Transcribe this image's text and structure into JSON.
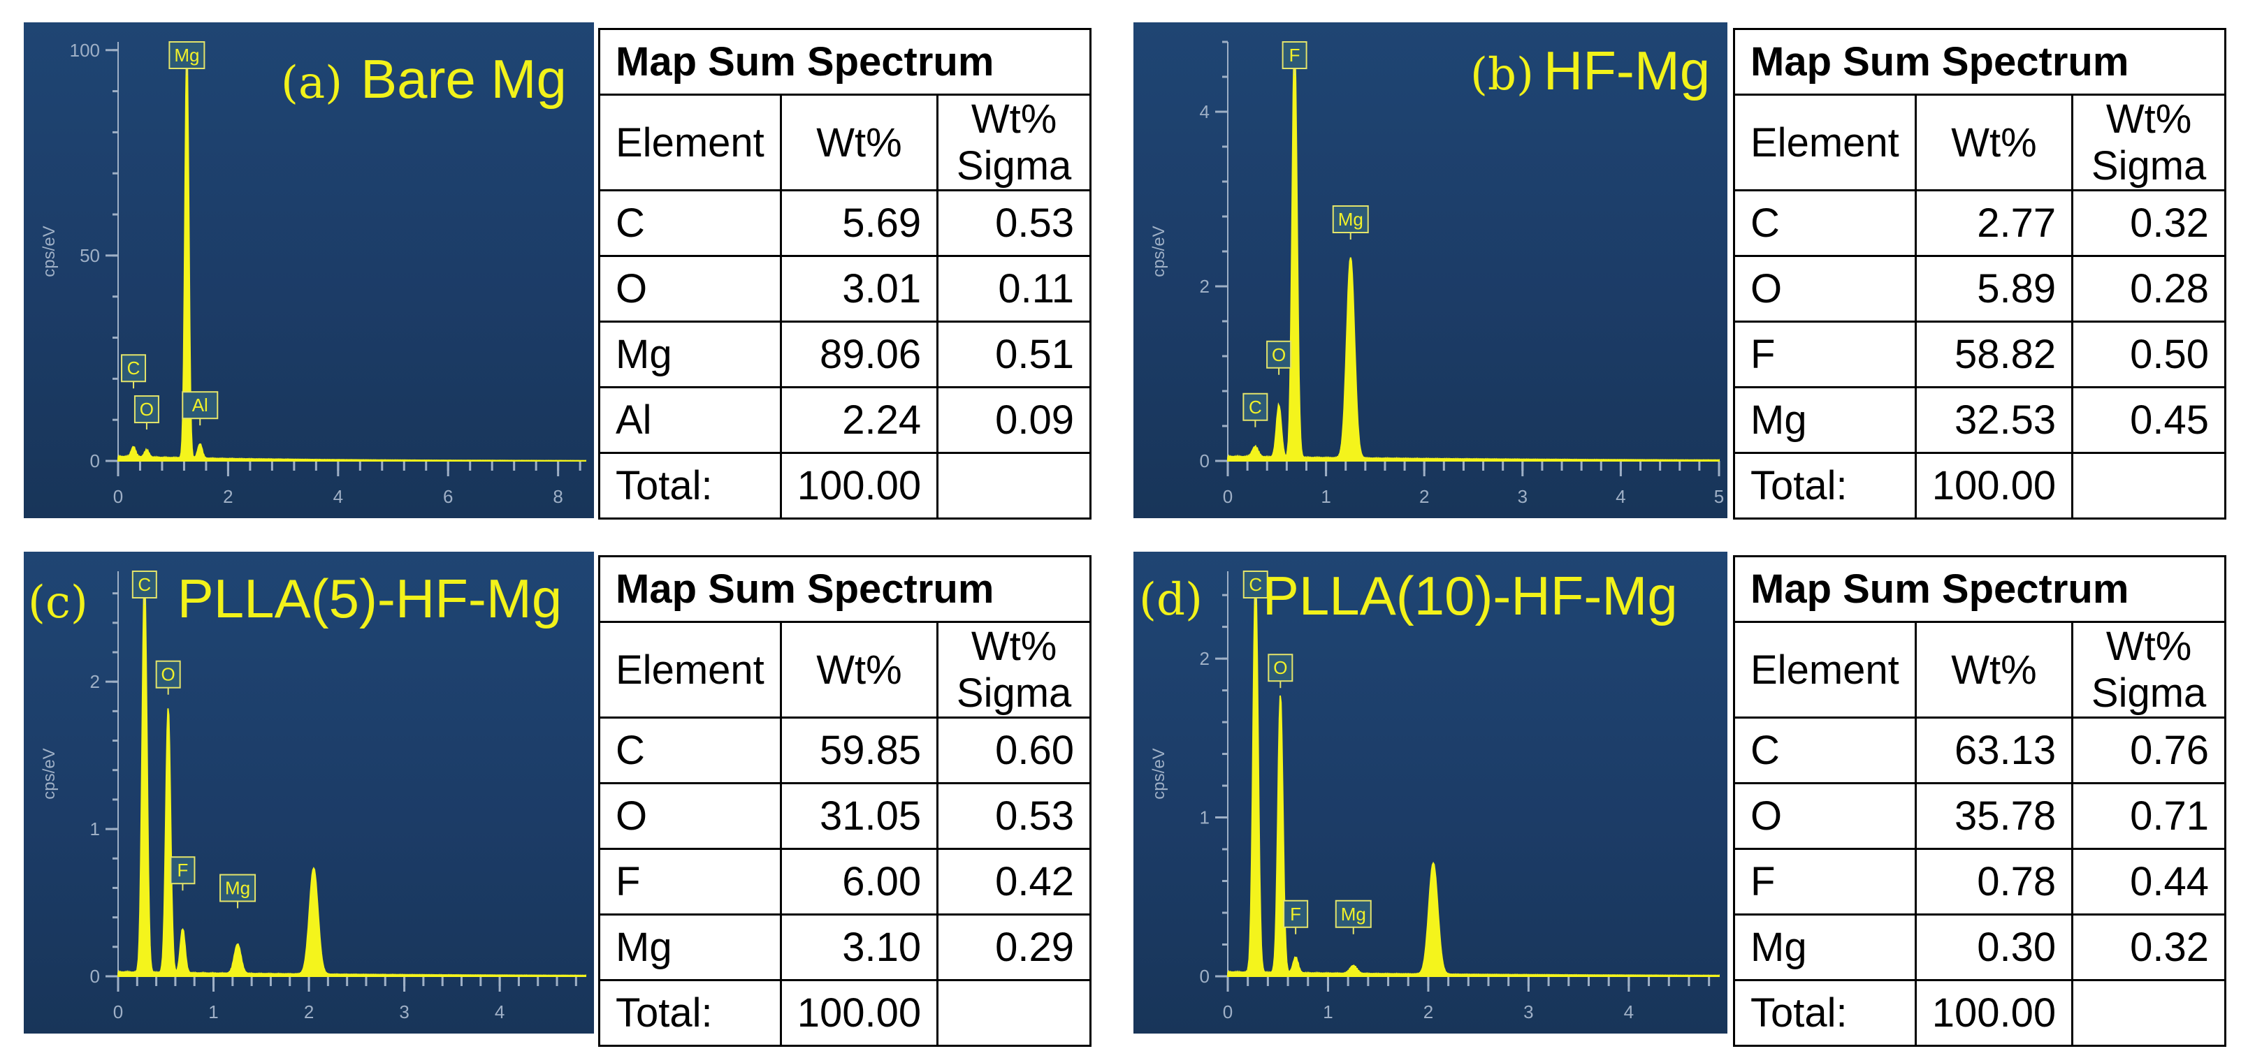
{
  "panels": [
    {
      "letter": "(a)",
      "name": "Bare Mg",
      "spectrum": {
        "type": "line",
        "ylabel": "cps/eV",
        "xlim": [
          0,
          8.5
        ],
        "ylim": [
          0,
          102
        ],
        "x_ticks": [
          "0",
          "2",
          "4",
          "6",
          "8"
        ],
        "x_tick_values": [
          0,
          2,
          4,
          6,
          8
        ],
        "y_ticks": [
          "0",
          "50",
          "100"
        ],
        "y_tick_values": [
          0,
          50,
          100
        ],
        "peaks": [
          {
            "label": "C",
            "x": 0.28,
            "y": 2.5,
            "w": 0.04
          },
          {
            "label": "O",
            "x": 0.52,
            "y": 1.8,
            "w": 0.04
          },
          {
            "label": "Mg",
            "x": 1.25,
            "y": 100,
            "w": 0.035
          },
          {
            "label": "Al",
            "x": 1.49,
            "y": 3.5,
            "w": 0.04
          }
        ],
        "peak_tags": [
          {
            "label": "C",
            "x": 0.28,
            "y": 19
          },
          {
            "label": "O",
            "x": 0.52,
            "y": 9
          },
          {
            "label": "Mg",
            "x": 1.25,
            "y": 102
          },
          {
            "label": "Al",
            "x": 1.49,
            "y": 10
          }
        ]
      },
      "table": {
        "title": "Map Sum Spectrum",
        "headers": [
          "Element",
          "Wt%",
          "Wt% Sigma"
        ],
        "rows": [
          [
            "C",
            "5.69",
            "0.53"
          ],
          [
            "O",
            "3.01",
            "0.11"
          ],
          [
            "Mg",
            "89.06",
            "0.51"
          ],
          [
            "Al",
            "2.24",
            "0.09"
          ]
        ],
        "total_label": "Total:",
        "total_value": "100.00"
      }
    },
    {
      "letter": "(b)",
      "name": "HF-Mg",
      "spectrum": {
        "type": "line",
        "ylabel": "cps/eV",
        "xlim": [
          0,
          5
        ],
        "ylim": [
          0,
          4.8
        ],
        "x_ticks": [
          "0",
          "1",
          "2",
          "3",
          "4",
          "5"
        ],
        "x_tick_values": [
          0,
          1,
          2,
          3,
          4,
          5
        ],
        "y_ticks": [
          "0",
          "2",
          "4"
        ],
        "y_tick_values": [
          0,
          2,
          4
        ],
        "peaks": [
          {
            "label": "C",
            "x": 0.28,
            "y": 0.12,
            "w": 0.03
          },
          {
            "label": "O",
            "x": 0.52,
            "y": 0.6,
            "w": 0.025
          },
          {
            "label": "F",
            "x": 0.68,
            "y": 4.8,
            "w": 0.025
          },
          {
            "label": "Mg",
            "x": 1.25,
            "y": 2.3,
            "w": 0.04
          }
        ],
        "peak_tags": [
          {
            "label": "C",
            "x": 0.28,
            "y": 0.45
          },
          {
            "label": "O",
            "x": 0.52,
            "y": 1.05
          },
          {
            "label": "F",
            "x": 0.68,
            "y": 4.8
          },
          {
            "label": "Mg",
            "x": 1.25,
            "y": 2.6
          }
        ]
      },
      "table": {
        "title": "Map Sum Spectrum",
        "headers": [
          "Element",
          "Wt%",
          "Wt% Sigma"
        ],
        "rows": [
          [
            "C",
            "2.77",
            "0.32"
          ],
          [
            "O",
            "5.89",
            "0.28"
          ],
          [
            "F",
            "58.82",
            "0.50"
          ],
          [
            "Mg",
            "32.53",
            "0.45"
          ]
        ],
        "total_label": "Total:",
        "total_value": "100.00"
      }
    },
    {
      "letter": "(c)",
      "name": "PLLA(5)-HF-Mg",
      "spectrum": {
        "type": "line",
        "ylabel": "cps/eV",
        "xlim": [
          0,
          4.9
        ],
        "ylim": [
          0,
          2.75
        ],
        "x_ticks": [
          "0",
          "1",
          "2",
          "3",
          "4"
        ],
        "x_tick_values": [
          0,
          1,
          2,
          3,
          4
        ],
        "y_ticks": [
          "0",
          "1",
          "2"
        ],
        "y_tick_values": [
          0,
          1,
          2
        ],
        "peaks": [
          {
            "label": "C",
            "x": 0.277,
            "y": 2.7,
            "w": 0.025
          },
          {
            "label": "O",
            "x": 0.525,
            "y": 1.8,
            "w": 0.025
          },
          {
            "label": "F",
            "x": 0.677,
            "y": 0.3,
            "w": 0.025
          },
          {
            "label": "Mg",
            "x": 1.253,
            "y": 0.2,
            "w": 0.035
          },
          {
            "label": "",
            "x": 2.05,
            "y": 0.72,
            "w": 0.045
          }
        ],
        "peak_tags": [
          {
            "label": "C",
            "x": 0.277,
            "y": 2.72
          },
          {
            "label": "O",
            "x": 0.525,
            "y": 1.95
          },
          {
            "label": "F",
            "x": 0.677,
            "y": 0.62
          },
          {
            "label": "Mg",
            "x": 1.253,
            "y": 0.5
          }
        ]
      },
      "table": {
        "title": "Map Sum Spectrum",
        "headers": [
          "Element",
          "Wt%",
          "Wt% Sigma"
        ],
        "rows": [
          [
            "C",
            "59.85",
            "0.60"
          ],
          [
            "O",
            "31.05",
            "0.53"
          ],
          [
            "F",
            "6.00",
            "0.42"
          ],
          [
            "Mg",
            "3.10",
            "0.29"
          ]
        ],
        "total_label": "Total:",
        "total_value": "100.00"
      }
    },
    {
      "letter": "(d)",
      "name": "PLLA(10)-HF-Mg",
      "spectrum": {
        "type": "line",
        "ylabel": "cps/eV",
        "xlim": [
          0,
          4.9
        ],
        "ylim": [
          0,
          2.55
        ],
        "x_ticks": [
          "0",
          "1",
          "2",
          "3",
          "4"
        ],
        "x_tick_values": [
          0,
          1,
          2,
          3,
          4
        ],
        "y_ticks": [
          "0",
          "1",
          "2"
        ],
        "y_tick_values": [
          0,
          1,
          2
        ],
        "peaks": [
          {
            "label": "C",
            "x": 0.277,
            "y": 2.5,
            "w": 0.025
          },
          {
            "label": "O",
            "x": 0.525,
            "y": 1.75,
            "w": 0.025
          },
          {
            "label": "F",
            "x": 0.677,
            "y": 0.1,
            "w": 0.025
          },
          {
            "label": "Mg",
            "x": 1.253,
            "y": 0.05,
            "w": 0.035
          },
          {
            "label": "",
            "x": 2.05,
            "y": 0.7,
            "w": 0.045
          }
        ],
        "peak_tags": [
          {
            "label": "C",
            "x": 0.277,
            "y": 2.55
          },
          {
            "label": "O",
            "x": 0.525,
            "y": 1.85
          },
          {
            "label": "F",
            "x": 0.677,
            "y": 0.3
          },
          {
            "label": "Mg",
            "x": 1.253,
            "y": 0.3
          }
        ]
      },
      "table": {
        "title": "Map Sum Spectrum",
        "headers": [
          "Element",
          "Wt%",
          "Wt% Sigma"
        ],
        "rows": [
          [
            "C",
            "63.13",
            "0.76"
          ],
          [
            "O",
            "35.78",
            "0.71"
          ],
          [
            "F",
            "0.78",
            "0.44"
          ],
          [
            "Mg",
            "0.30",
            "0.32"
          ]
        ],
        "total_label": "Total:",
        "total_value": "100.00"
      }
    }
  ],
  "chart_data": [
    {
      "type": "line",
      "panel": "(a)",
      "title": "Bare Mg",
      "ylabel": "cps/eV",
      "xlim": [
        0,
        8.5
      ],
      "ylim": [
        0,
        102
      ],
      "series": [
        {
          "peaks_x": [
            0.28,
            0.52,
            1.25,
            1.49
          ],
          "peaks_y": [
            2.5,
            1.8,
            100,
            3.5
          ],
          "peak_labels": [
            "C",
            "O",
            "Mg",
            "Al"
          ]
        }
      ]
    },
    {
      "type": "line",
      "panel": "(b)",
      "title": "HF-Mg",
      "ylabel": "cps/eV",
      "xlim": [
        0,
        5
      ],
      "ylim": [
        0,
        4.8
      ],
      "series": [
        {
          "peaks_x": [
            0.28,
            0.52,
            0.68,
            1.25
          ],
          "peaks_y": [
            0.12,
            0.6,
            4.8,
            2.3
          ],
          "peak_labels": [
            "C",
            "O",
            "F",
            "Mg"
          ]
        }
      ]
    },
    {
      "type": "line",
      "panel": "(c)",
      "title": "PLLA(5)-HF-Mg",
      "ylabel": "cps/eV",
      "xlim": [
        0,
        4.9
      ],
      "ylim": [
        0,
        2.75
      ],
      "series": [
        {
          "peaks_x": [
            0.277,
            0.525,
            0.677,
            1.253,
            2.05
          ],
          "peaks_y": [
            2.7,
            1.8,
            0.3,
            0.2,
            0.72
          ],
          "peak_labels": [
            "C",
            "O",
            "F",
            "Mg",
            ""
          ]
        }
      ]
    },
    {
      "type": "line",
      "panel": "(d)",
      "title": "PLLA(10)-HF-Mg",
      "ylabel": "cps/eV",
      "xlim": [
        0,
        4.9
      ],
      "ylim": [
        0,
        2.55
      ],
      "series": [
        {
          "peaks_x": [
            0.277,
            0.525,
            0.677,
            1.253,
            2.05
          ],
          "peaks_y": [
            2.5,
            1.75,
            0.1,
            0.05,
            0.7
          ],
          "peak_labels": [
            "C",
            "O",
            "F",
            "Mg",
            ""
          ]
        }
      ]
    }
  ],
  "colors": {
    "spectrum_fill": "#f4f41c",
    "label_color": "#f2f21a",
    "axis_color": "#9fb0c6"
  }
}
